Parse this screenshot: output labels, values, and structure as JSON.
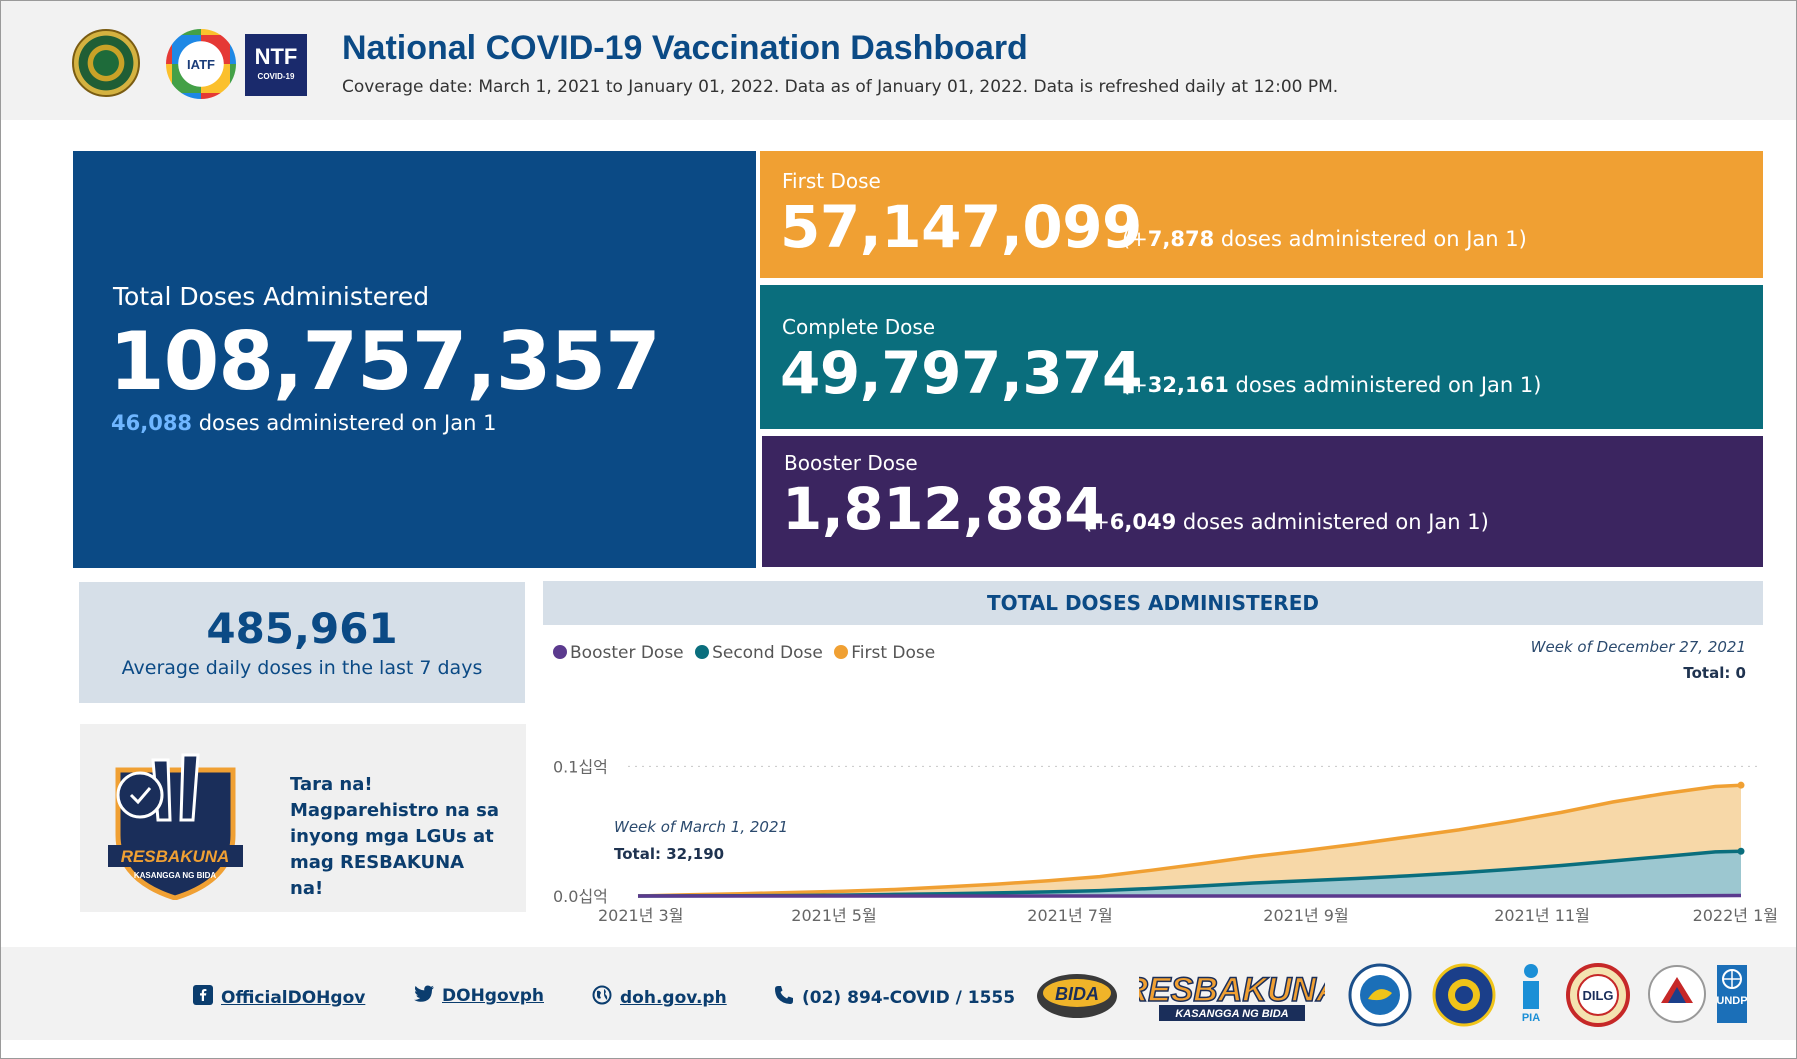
{
  "header": {
    "title": "National COVID-19 Vaccination Dashboard",
    "subtitle": "Coverage date: March 1, 2021 to January 01, 2022. Data as of January 01, 2022. Data is refreshed daily at 12:00 PM.",
    "logos": [
      "doh-seal-icon",
      "iatf-logo-icon",
      "ntf-covid19-logo-icon"
    ],
    "ntf_logo_text": "NTF",
    "ntf_logo_sub": "COVID-19",
    "iatf_logo_text": "IATF"
  },
  "total": {
    "label": "Total Doses Administered",
    "value": "108,757,357",
    "daily": "46,088",
    "daily_suffix": " doses administered on Jan 1"
  },
  "first_dose": {
    "label": "First Dose",
    "value": "57,147,099",
    "prefix": "(+",
    "daily": "7,878",
    "suffix": " doses administered on Jan 1)"
  },
  "complete_dose": {
    "label": "Complete Dose",
    "value": "49,797,374",
    "prefix": "(+",
    "daily": "32,161",
    "suffix": " doses administered on Jan 1)"
  },
  "booster_dose": {
    "label": "Booster Dose",
    "value": "1,812,884",
    "prefix": "(+",
    "daily": "6,049",
    "suffix": " doses administered on Jan 1)"
  },
  "average": {
    "value": "485,961",
    "label": "Average daily doses in the last 7 days"
  },
  "promo": {
    "text": "Tara na! Magparehistro na sa inyong mga LGUs at mag RESBAKUNA na!",
    "badge_icon": "resbakuna-badge-icon",
    "badge_text": "RESBAKUNA",
    "badge_sub": "KASANGGA NG BIDA"
  },
  "chart": {
    "header": "TOTAL DOSES ADMINISTERED",
    "tooltip_right_week": "Week of December 27, 2021",
    "tooltip_right_total": "Total: 0",
    "tooltip_left_week": "Week of March 1, 2021",
    "tooltip_left_total": "Total: 32,190"
  },
  "chart_data": {
    "type": "area",
    "title": "TOTAL DOSES ADMINISTERED",
    "legend_position": "top-left",
    "colors": {
      "Booster Dose": "#5b3a8e",
      "Second Dose": "#0a6e7d",
      "First Dose": "#f0a033"
    },
    "y_tick_labels": [
      "0.0십억",
      "0.1십억"
    ],
    "y_ticks": [
      0,
      100000000
    ],
    "ylim": [
      0,
      108000000
    ],
    "x_tick_labels": [
      "2021년 3월",
      "2021년 5월",
      "2021년 7월",
      "2021년 9월",
      "2021년 11월",
      "2022년 1월"
    ],
    "x": [
      0,
      2,
      4,
      6,
      8,
      10,
      12,
      14,
      16,
      18,
      20,
      22,
      24,
      26,
      28,
      30,
      32,
      34,
      36,
      38,
      40,
      42,
      43
    ],
    "series": [
      {
        "name": "Booster Dose",
        "values": [
          0,
          0,
          0,
          0,
          0,
          0,
          0,
          0,
          0,
          0,
          0,
          0,
          0,
          0,
          0,
          0,
          0,
          0,
          0,
          0,
          100000,
          300000,
          400000
        ]
      },
      {
        "name": "Second Dose",
        "values": [
          0,
          100000,
          200000,
          400000,
          700000,
          1200000,
          1800000,
          2400000,
          3200000,
          4200000,
          5800000,
          7800000,
          10000000,
          11800000,
          13500000,
          15500000,
          17800000,
          20500000,
          23500000,
          27000000,
          30500000,
          34000000,
          34500000
        ]
      },
      {
        "name": "First Dose",
        "values": [
          32190,
          1000000,
          1800000,
          2700000,
          3700000,
          5000000,
          7000000,
          9200000,
          11800000,
          15000000,
          19800000,
          25000000,
          30500000,
          35000000,
          40000000,
          45500000,
          51000000,
          57500000,
          64500000,
          72500000,
          79000000,
          84500000,
          85500000
        ]
      }
    ]
  },
  "footer": {
    "facebook": "OfficialDOHgov",
    "twitter": "DOHgovph",
    "website": "doh.gov.ph",
    "phone": "(02) 894-COVID / 1555",
    "logos": [
      "bida-solusyon-logo-icon",
      "resbakuna-logo-icon",
      "pco-seal-icon",
      "dict-seal-icon",
      "pia-logo-icon",
      "dilg-seal-icon",
      "dost-seal-icon",
      "undp-logo-icon"
    ],
    "bida_text": "BIDA",
    "resbakuna_text": "RESBAKUNA",
    "resbakuna_sub": "KASANGGA NG BIDA",
    "pia_text": "PIA",
    "dilg_text": "DILG",
    "undp_text": "UNDP"
  }
}
